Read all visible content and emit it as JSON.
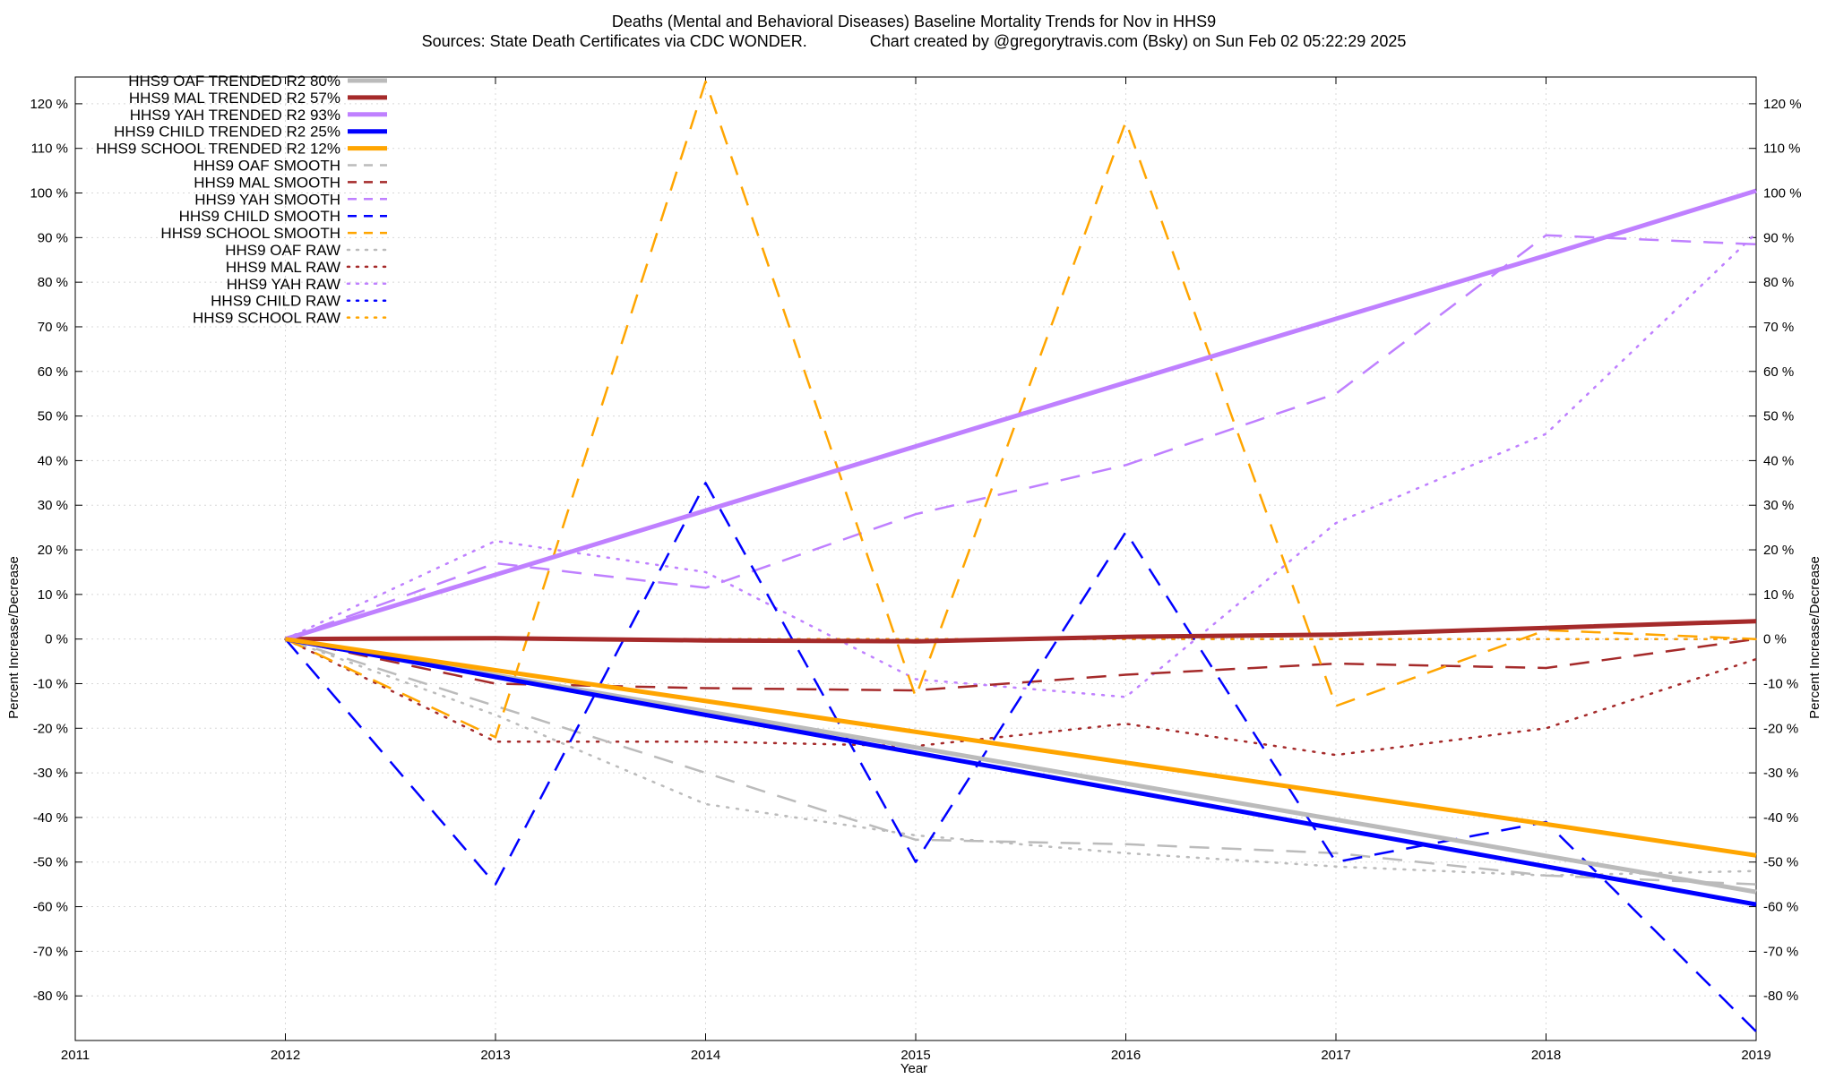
{
  "chart_data": {
    "type": "line",
    "title": "Deaths (Mental and Behavioral Diseases)  Baseline Mortality Trends for Nov in HHS9",
    "subtitle": "Sources: State Death Certificates via CDC WONDER.              Chart created by @gregorytravis.com (Bsky) on Sun Feb 02 05:22:29 2025",
    "xlabel": "Year",
    "ylabel": "Percent Increase/Decrease",
    "y2label": "Percent Increase/Decrease",
    "xlim": [
      2011,
      2019
    ],
    "ylim": [
      -90,
      126
    ],
    "x_ticks": [
      2011,
      2012,
      2013,
      2014,
      2015,
      2016,
      2017,
      2018,
      2019
    ],
    "y_ticks": [
      120,
      110,
      100,
      90,
      80,
      70,
      60,
      50,
      40,
      30,
      20,
      10,
      0,
      -10,
      -20,
      -30,
      -40,
      -50,
      -60,
      -70,
      -80
    ],
    "y_tick_labels_left": [
      "120 %",
      "110 %",
      "100 %",
      "90 %",
      "80 %",
      "70 %",
      "60 %",
      "50 %",
      "40 %",
      "30 %",
      "20 %",
      "10 %",
      "0 %",
      "-10 %",
      "-20 %",
      "-30 %",
      "-40 %",
      "-50 %",
      "-60 %",
      "-70 %",
      "-80 %"
    ],
    "y_tick_labels_right": [
      "120 %",
      "110 %",
      "100 %",
      "90 %",
      "80 %",
      "70 %",
      "60 %",
      "50 %",
      "40 %",
      "30 %",
      "20 %",
      "10 %",
      "0 %",
      "-10 %",
      "-20 %",
      "-30 %",
      "-40 %",
      "-50 %",
      "-60 %",
      "-70 %",
      "-80 %"
    ],
    "grid": true,
    "legend_position": "top-left",
    "x": [
      2012,
      2013,
      2014,
      2015,
      2016,
      2017,
      2018,
      2019
    ],
    "series": [
      {
        "name": "HHS9 OAF TRENDED R2  80%",
        "style": "solid",
        "color": "#bbbbbb",
        "values": [
          0,
          -8.1,
          -16.2,
          -24.3,
          -32.4,
          -40.5,
          -48.6,
          -56.7
        ]
      },
      {
        "name": "HHS9 MAL TRENDED R2  57%",
        "style": "solid",
        "color": "#a52a2a",
        "values": [
          0,
          0.2,
          -0.3,
          -0.5,
          0.5,
          1.0,
          2.5,
          4.0
        ]
      },
      {
        "name": "HHS9 YAH TRENDED R2  93%",
        "style": "solid",
        "color": "#bf80ff",
        "values": [
          0,
          14.4,
          28.8,
          43.2,
          57.5,
          71.8,
          86.0,
          100.5
        ]
      },
      {
        "name": "HHS9 CHILD TRENDED R2  25%",
        "style": "solid",
        "color": "#0000ff",
        "values": [
          0,
          -8.5,
          -17.0,
          -25.5,
          -34.0,
          -42.5,
          -51.0,
          -59.5
        ]
      },
      {
        "name": "HHS9 SCHOOL TRENDED R2  12%",
        "style": "solid",
        "color": "#ffa500",
        "values": [
          0,
          -7.0,
          -13.9,
          -20.8,
          -27.7,
          -34.6,
          -41.5,
          -48.5
        ]
      },
      {
        "name": "HHS9 OAF SMOOTH",
        "style": "dashed",
        "color": "#bbbbbb",
        "values": [
          0,
          -15,
          -30,
          -45,
          -46,
          -48,
          -53,
          -55
        ]
      },
      {
        "name": "HHS9 MAL SMOOTH",
        "style": "dashed",
        "color": "#a52a2a",
        "values": [
          0,
          -10,
          -11,
          -11.5,
          -8,
          -5.5,
          -6.5,
          0
        ]
      },
      {
        "name": "HHS9 YAH SMOOTH",
        "style": "dashed",
        "color": "#bf80ff",
        "values": [
          0,
          17,
          11.5,
          28,
          39,
          55,
          90.5,
          88.5
        ]
      },
      {
        "name": "HHS9 CHILD SMOOTH",
        "style": "dashed",
        "color": "#0000ff",
        "values": [
          0,
          -55,
          35,
          -50,
          24,
          -50,
          -41,
          -88
        ]
      },
      {
        "name": "HHS9 SCHOOL SMOOTH",
        "style": "dashed",
        "color": "#ffa500",
        "values": [
          0,
          -22,
          125,
          -13,
          116,
          -15,
          2,
          0
        ]
      },
      {
        "name": "HHS9 OAF RAW",
        "style": "dotted",
        "color": "#bbbbbb",
        "values": [
          0,
          -17,
          -37,
          -44,
          -48,
          -51,
          -53,
          -52
        ]
      },
      {
        "name": "HHS9 MAL RAW",
        "style": "dotted",
        "color": "#a52a2a",
        "values": [
          0,
          -23,
          -23,
          -24,
          -19,
          -26,
          -20,
          -4.5
        ]
      },
      {
        "name": "HHS9 YAH RAW",
        "style": "dotted",
        "color": "#bf80ff",
        "values": [
          0,
          22,
          15,
          -9,
          -13,
          26,
          46,
          91
        ]
      },
      {
        "name": "HHS9 CHILD RAW",
        "style": "dotted",
        "color": "#0000ff",
        "values": [
          0,
          0,
          0,
          0,
          0,
          0,
          0,
          0
        ]
      },
      {
        "name": "HHS9 SCHOOL RAW",
        "style": "dotted",
        "color": "#ffa500",
        "values": [
          0,
          0,
          0,
          0,
          0,
          0,
          0,
          0
        ]
      }
    ]
  }
}
